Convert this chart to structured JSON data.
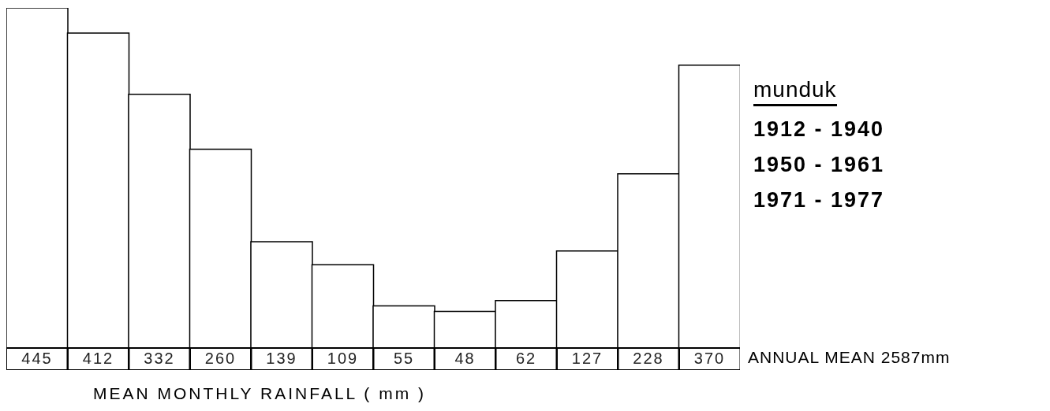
{
  "chart_data": {
    "type": "bar",
    "title": "munduk",
    "xlabel": "MEAN MONTHLY RAINFALL ( mm )",
    "categories": [
      null,
      null,
      null,
      null,
      null,
      null,
      null,
      null,
      null,
      null,
      null,
      null
    ],
    "values": [
      445,
      412,
      332,
      260,
      139,
      109,
      55,
      48,
      62,
      127,
      228,
      370
    ],
    "color": "#ffffff",
    "data_labels": true,
    "grid": false,
    "legend": false,
    "annotations": [
      "1912 - 1940",
      "1950 - 1961",
      "1971 - 1977",
      "ANNUAL MEAN 2587mm"
    ]
  }
}
